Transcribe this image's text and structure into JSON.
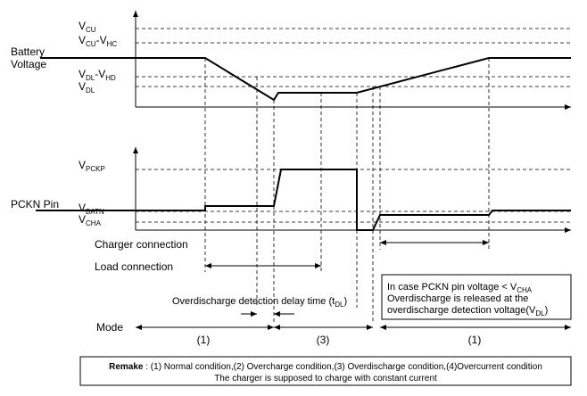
{
  "battery": {
    "label_lines": [
      "Battery",
      "Voltage"
    ],
    "levels": [
      [
        {
          "text": "V"
        },
        {
          "sub": "CU"
        }
      ],
      [
        {
          "text": "V"
        },
        {
          "sub": "CU"
        },
        {
          "text": "-V"
        },
        {
          "sub": "HC"
        }
      ],
      [
        {
          "text": "V"
        },
        {
          "sub": "DL"
        },
        {
          "text": "-V"
        },
        {
          "sub": "HD"
        }
      ],
      [
        {
          "text": "V"
        },
        {
          "sub": "DL"
        }
      ]
    ]
  },
  "pckn": {
    "label": "PCKN Pin",
    "levels": [
      [
        {
          "text": "V"
        },
        {
          "sub": "PCKP"
        }
      ],
      [
        {
          "text": "V"
        },
        {
          "sub": "BATN"
        }
      ],
      [
        {
          "text": "V"
        },
        {
          "sub": "CHA"
        }
      ]
    ]
  },
  "charger_connection": "Charger connection",
  "load_connection": "Load connection",
  "note": {
    "lines": [
      [
        {
          "text": "In case PCKN pin voltage < V"
        },
        {
          "sub": "CHA"
        }
      ],
      [
        {
          "text": "Overdischarge is released at the"
        }
      ],
      [
        {
          "text": "overdischarge detection voltage(V"
        },
        {
          "sub": "DL"
        },
        {
          "text": ")"
        }
      ]
    ]
  },
  "delay": [
    {
      "text": "Overdischarge detection delay time (t"
    },
    {
      "sub": "DL"
    },
    {
      "text": ")"
    }
  ],
  "mode": {
    "label": "Mode",
    "phases": [
      "(1)",
      "(3)",
      "(1)"
    ]
  },
  "remark": {
    "bold": "Remake",
    "line1": " : (1) Normal condition,(2) Overcharge condition,(3) Overdischarge condition,(4)Overcurrent condition",
    "line2": "The charger is supposed to charge with constant current"
  }
}
